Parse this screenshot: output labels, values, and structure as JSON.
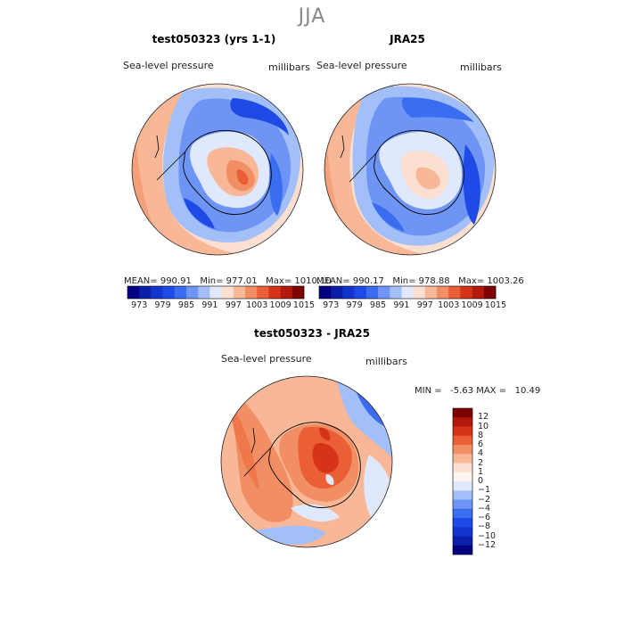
{
  "figure": {
    "season": "JJA"
  },
  "panels": {
    "model": {
      "title": "test050323 (yrs 1-1)",
      "variable": "Sea-level pressure",
      "units": "millibars",
      "stats": "MEAN= 990.91   Min= 977.01   Max= 1010.10"
    },
    "obs": {
      "title": "JRA25",
      "variable": "Sea-level pressure",
      "units": "millibars",
      "stats": "MEAN= 990.17   Min= 978.88   Max= 1003.26"
    },
    "diff": {
      "title": "test050323 - JRA25",
      "variable": "Sea-level pressure",
      "units": "millibars",
      "stats": "MIN =   -5.63 MAX =   10.49"
    }
  },
  "colorbars": {
    "abs": {
      "labels": [
        "973",
        "979",
        "985",
        "991",
        "997",
        "1003",
        "1009",
        "1015"
      ],
      "colors": [
        "#000080",
        "#0a1faa",
        "#1435cd",
        "#1f4ae6",
        "#3b6df0",
        "#6e95f5",
        "#a3bff8",
        "#dfe8fc",
        "#fbe0d2",
        "#f8b898",
        "#f28e63",
        "#ea5f35",
        "#d73318",
        "#b2180c",
        "#800000"
      ]
    },
    "diff": {
      "labels": [
        "12",
        "10",
        "8",
        "6",
        "4",
        "2",
        "1",
        "0",
        "−1",
        "−2",
        "−4",
        "−6",
        "−8",
        "−10",
        "−12"
      ],
      "colors": [
        "#800000",
        "#b2180c",
        "#d73318",
        "#ea5f35",
        "#f28e63",
        "#f8b898",
        "#fbe0d2",
        "#fdf3ee",
        "#dfe8fc",
        "#a3bff8",
        "#6e95f5",
        "#3b6df0",
        "#1f4ae6",
        "#1435cd",
        "#0a1faa",
        "#000080"
      ]
    }
  }
}
